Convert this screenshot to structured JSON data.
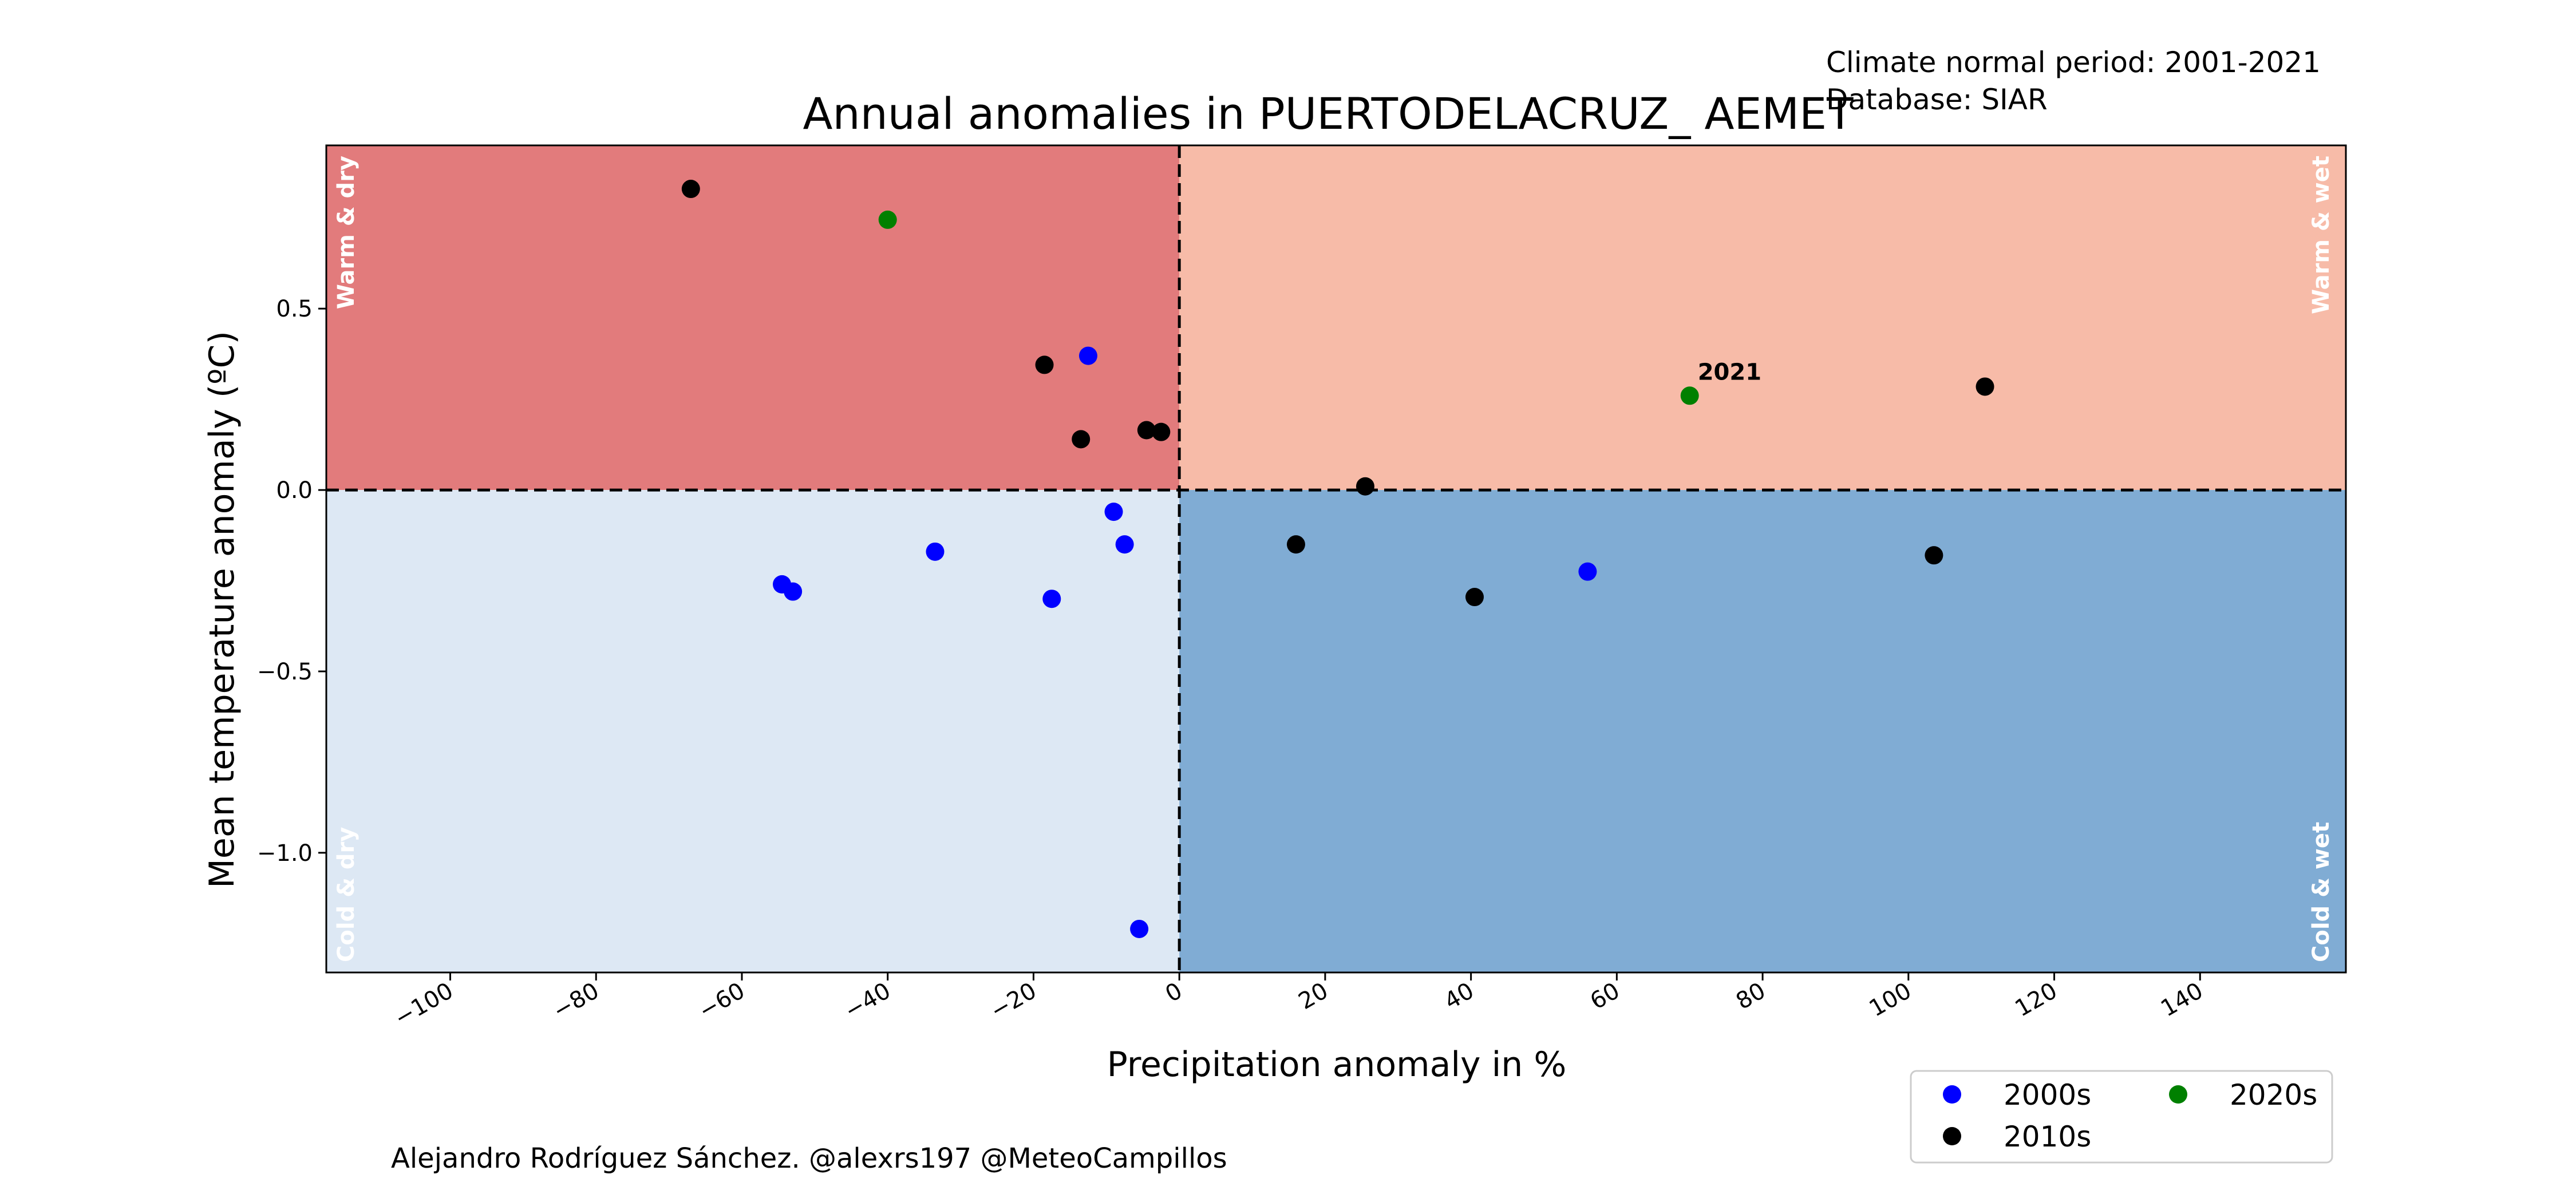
{
  "chart_data": {
    "type": "scatter",
    "title": "Annual anomalies in PUERTODELACRUZ_ AEMET",
    "info_lines": [
      "Climate normal period: 2001-2021",
      "Database: SIAR"
    ],
    "xlabel": "Precipitation anomaly in %",
    "ylabel": "Mean temperature anomaly (ºC)",
    "xlim": [
      -117,
      160
    ],
    "ylim": [
      -1.33,
      0.95
    ],
    "x_ticks": [
      -100,
      -80,
      -60,
      -40,
      -20,
      0,
      20,
      40,
      60,
      80,
      100,
      120,
      140
    ],
    "x_tick_labels": [
      "−100",
      "−80",
      "−60",
      "−40",
      "−20",
      "0",
      "20",
      "40",
      "60",
      "80",
      "100",
      "120",
      "140"
    ],
    "y_ticks": [
      0.5,
      0.0,
      -0.5,
      -1.0
    ],
    "y_tick_labels": [
      "0.5",
      "0.0",
      "−0.5",
      "−1.0"
    ],
    "grid": false,
    "quadrants": [
      {
        "label": "Warm & dry",
        "color": "#e27b7c"
      },
      {
        "label": "Warm & wet",
        "color": "#f7bba8"
      },
      {
        "label": "Cold & dry",
        "color": "#dde8f4"
      },
      {
        "label": "Cold & wet",
        "color": "#80acd4"
      }
    ],
    "series": [
      {
        "name": "2000s",
        "color": "#0000ff",
        "points": [
          [
            -12.5,
            0.37
          ],
          [
            -9.0,
            -0.06
          ],
          [
            -7.5,
            -0.15
          ],
          [
            -5.5,
            -1.21
          ],
          [
            -17.5,
            -0.3
          ],
          [
            -33.5,
            -0.17
          ],
          [
            -54.5,
            -0.26
          ],
          [
            -53.0,
            -0.28
          ],
          [
            56.0,
            -0.225
          ]
        ]
      },
      {
        "name": "2010s",
        "color": "#000000",
        "points": [
          [
            -67.0,
            0.83
          ],
          [
            -18.5,
            0.345
          ],
          [
            -13.5,
            0.14
          ],
          [
            -4.5,
            0.165
          ],
          [
            -2.5,
            0.16
          ],
          [
            25.5,
            0.01
          ],
          [
            16.0,
            -0.15
          ],
          [
            40.5,
            -0.295
          ],
          [
            103.5,
            -0.18
          ],
          [
            110.5,
            0.285
          ]
        ]
      },
      {
        "name": "2020s",
        "color": "#008000",
        "points": [
          [
            -40.0,
            0.745
          ],
          [
            70.0,
            0.26
          ]
        ]
      }
    ],
    "annotations": [
      {
        "text": "2021",
        "x": 70.0,
        "y": 0.26
      }
    ],
    "legend": {
      "position": "bottom-right",
      "entries": [
        "2000s",
        "2020s",
        "2010s"
      ]
    }
  },
  "footer": {
    "credit": "Alejandro Rodríguez Sánchez. @alexrs197 @MeteoCampillos"
  }
}
